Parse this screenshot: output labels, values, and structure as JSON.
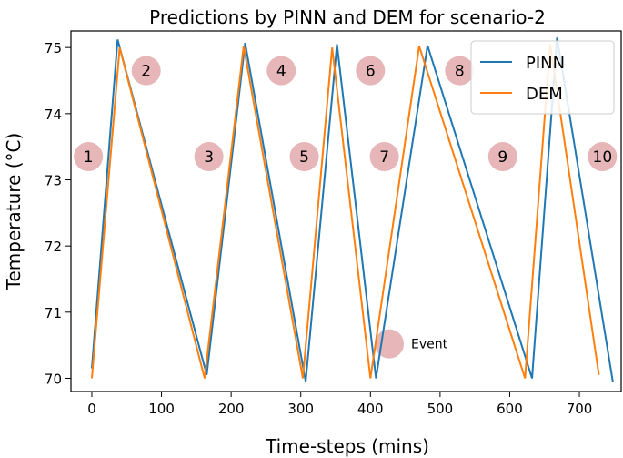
{
  "chart_data": {
    "type": "line",
    "title": "Predictions by PINN and DEM for scenario-2",
    "xlabel": "Time-steps (mins)",
    "ylabel": "Temperature (°C)",
    "xlim": [
      -30,
      760
    ],
    "ylim": [
      69.8,
      75.25
    ],
    "xticks": [
      0,
      100,
      200,
      300,
      400,
      500,
      600,
      700
    ],
    "yticks": [
      70,
      71,
      72,
      73,
      74,
      75
    ],
    "grid": false,
    "legend_position": "top-right",
    "series": [
      {
        "name": "PINN",
        "color": "#1f77b4",
        "x": [
          0,
          37,
          165,
          220,
          307,
          352,
          408,
          482,
          632,
          668,
          748
        ],
        "y": [
          70.15,
          75.12,
          70.05,
          75.07,
          69.95,
          75.05,
          70.0,
          75.03,
          70.0,
          75.15,
          69.95
        ]
      },
      {
        "name": "DEM",
        "color": "#ff7f0e",
        "x": [
          0,
          40,
          162,
          218,
          303,
          345,
          400,
          470,
          622,
          658,
          728
        ],
        "y": [
          70.0,
          75.0,
          70.0,
          75.02,
          70.0,
          75.0,
          70.0,
          75.02,
          70.0,
          75.05,
          70.05
        ]
      }
    ],
    "event_color": "#e6b6b8",
    "events": [
      {
        "label": "1",
        "x": -5,
        "y": 73.35
      },
      {
        "label": "2",
        "x": 78,
        "y": 74.65
      },
      {
        "label": "3",
        "x": 168,
        "y": 73.35
      },
      {
        "label": "4",
        "x": 272,
        "y": 74.65
      },
      {
        "label": "5",
        "x": 305,
        "y": 73.35
      },
      {
        "label": "6",
        "x": 400,
        "y": 74.65
      },
      {
        "label": "7",
        "x": 420,
        "y": 73.35
      },
      {
        "label": "8",
        "x": 528,
        "y": 74.65
      },
      {
        "label": "9",
        "x": 590,
        "y": 73.35
      },
      {
        "label": "10",
        "x": 733,
        "y": 73.35
      }
    ],
    "event_legend": {
      "label": "Event",
      "x": 427,
      "y": 70.52
    }
  }
}
